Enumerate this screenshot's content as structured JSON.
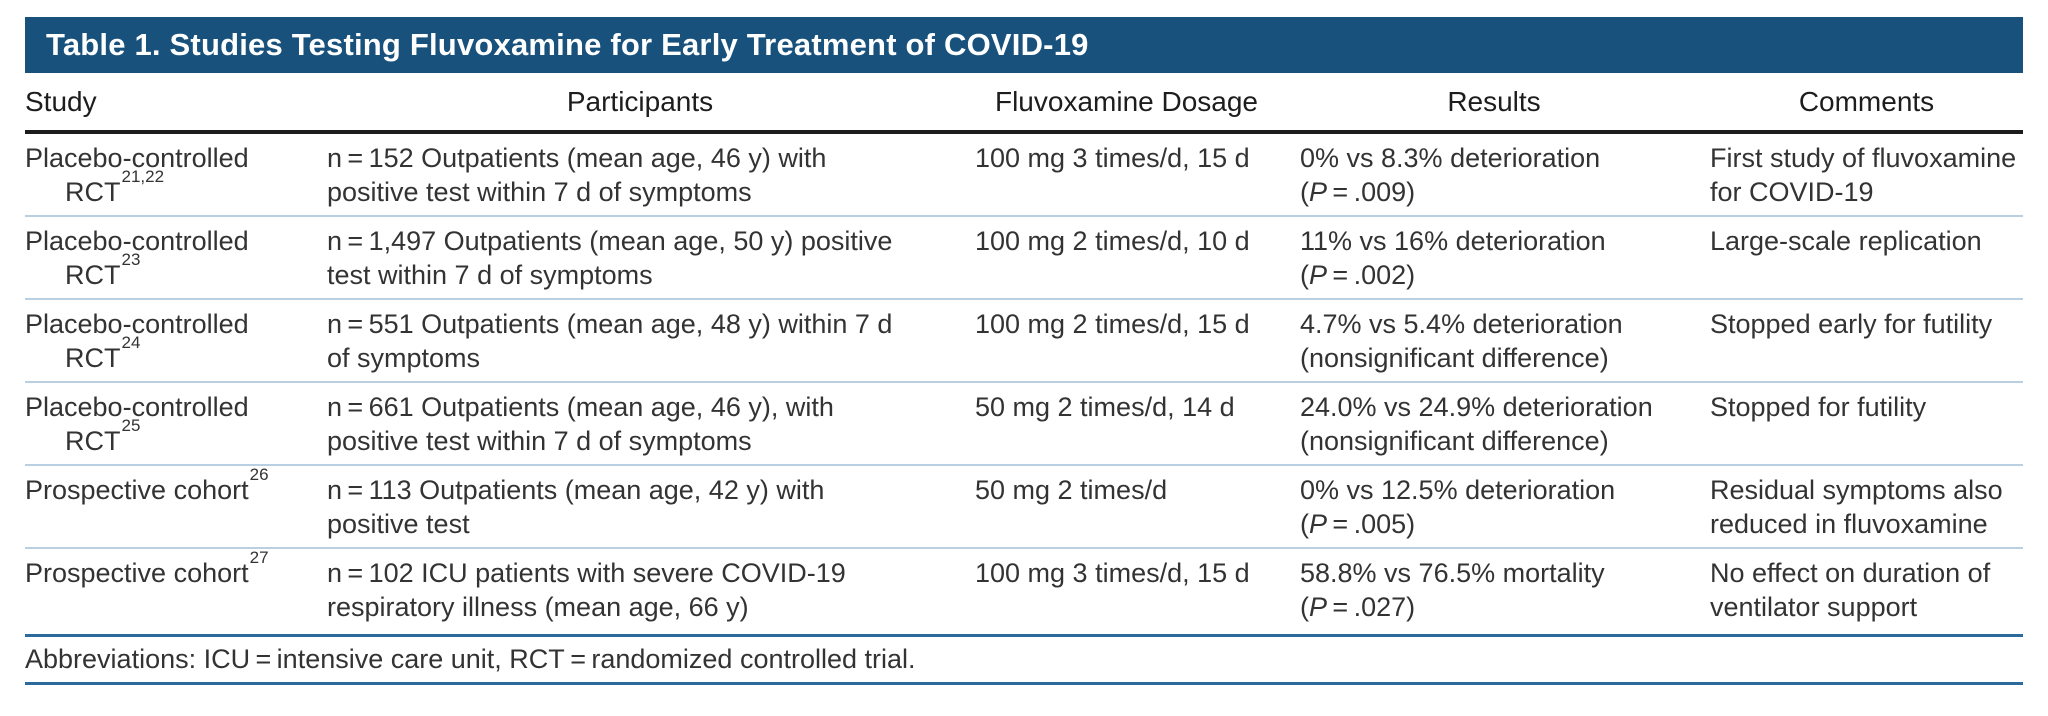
{
  "table": {
    "title": "Table 1. Studies Testing Fluvoxamine for Early Treatment of COVID-19",
    "columns": [
      "Study",
      "Participants",
      "Fluvoxamine Dosage",
      "Results",
      "Comments"
    ],
    "rows": [
      {
        "study_line1": "Placebo-controlled",
        "study_line2": "RCT",
        "study_sup": "21,22",
        "participants": "n = 152 Outpatients (mean age, 46 y) with positive test within 7 d of symptoms",
        "dosage": "100 mg 3 times/d, 15 d",
        "results_line1": "0% vs 8.3% deterioration",
        "results_line2_prefix": "(",
        "results_p": "P",
        "results_line2_suffix": " = .009)",
        "comments": "First study of fluvoxamine for COVID-19"
      },
      {
        "study_line1": "Placebo-controlled",
        "study_line2": "RCT",
        "study_sup": "23",
        "participants": "n = 1,497 Outpatients (mean age, 50 y) positive test within 7 d of symptoms",
        "dosage": "100 mg 2 times/d, 10 d",
        "results_line1": "11% vs 16% deterioration",
        "results_line2_prefix": "(",
        "results_p": "P",
        "results_line2_suffix": " = .002)",
        "comments": "Large-scale replication"
      },
      {
        "study_line1": "Placebo-controlled",
        "study_line2": "RCT",
        "study_sup": "24",
        "participants": "n = 551 Outpatients (mean age, 48 y) within 7 d of symptoms",
        "dosage": "100 mg 2 times/d, 15 d",
        "results_line1": "4.7% vs 5.4% deterioration",
        "results_line2_prefix": "(nonsignificant difference)",
        "results_p": "",
        "results_line2_suffix": "",
        "comments": "Stopped early for futility"
      },
      {
        "study_line1": "Placebo-controlled",
        "study_line2": "RCT",
        "study_sup": "25",
        "participants": "n = 661 Outpatients (mean age, 46 y), with positive test within 7 d of symptoms",
        "dosage": "50 mg 2 times/d, 14 d",
        "results_line1": "24.0% vs 24.9% deterioration",
        "results_line2_prefix": "(nonsignificant difference)",
        "results_p": "",
        "results_line2_suffix": "",
        "comments": "Stopped for futility"
      },
      {
        "study_line1": "Prospective cohort",
        "study_line2": "",
        "study_sup": "26",
        "participants": "n = 113 Outpatients (mean age, 42 y) with positive test",
        "dosage": "50 mg 2 times/d",
        "results_line1": "0% vs 12.5% deterioration",
        "results_line2_prefix": "(",
        "results_p": "P",
        "results_line2_suffix": " = .005)",
        "comments": "Residual symptoms also reduced in fluvoxamine"
      },
      {
        "study_line1": "Prospective cohort",
        "study_line2": "",
        "study_sup": "27",
        "participants": "n = 102 ICU patients with severe COVID-19 respiratory illness (mean age, 66 y)",
        "dosage": "100 mg 3 times/d, 15 d",
        "results_line1": "58.8% vs 76.5% mortality",
        "results_line2_prefix": "(",
        "results_p": "P",
        "results_line2_suffix": " = .027)",
        "comments": "No effect on duration of ventilator support"
      }
    ],
    "footnote": "Abbreviations: ICU = intensive care unit, RCT = randomized controlled trial.",
    "colors": {
      "title_bar_bg": "#18517c",
      "title_text": "#ffffff",
      "header_rule": "#1c1c1c",
      "row_divider": "#b9cfe2",
      "footer_rule": "#2b6a9b",
      "body_text": "#333333"
    }
  }
}
